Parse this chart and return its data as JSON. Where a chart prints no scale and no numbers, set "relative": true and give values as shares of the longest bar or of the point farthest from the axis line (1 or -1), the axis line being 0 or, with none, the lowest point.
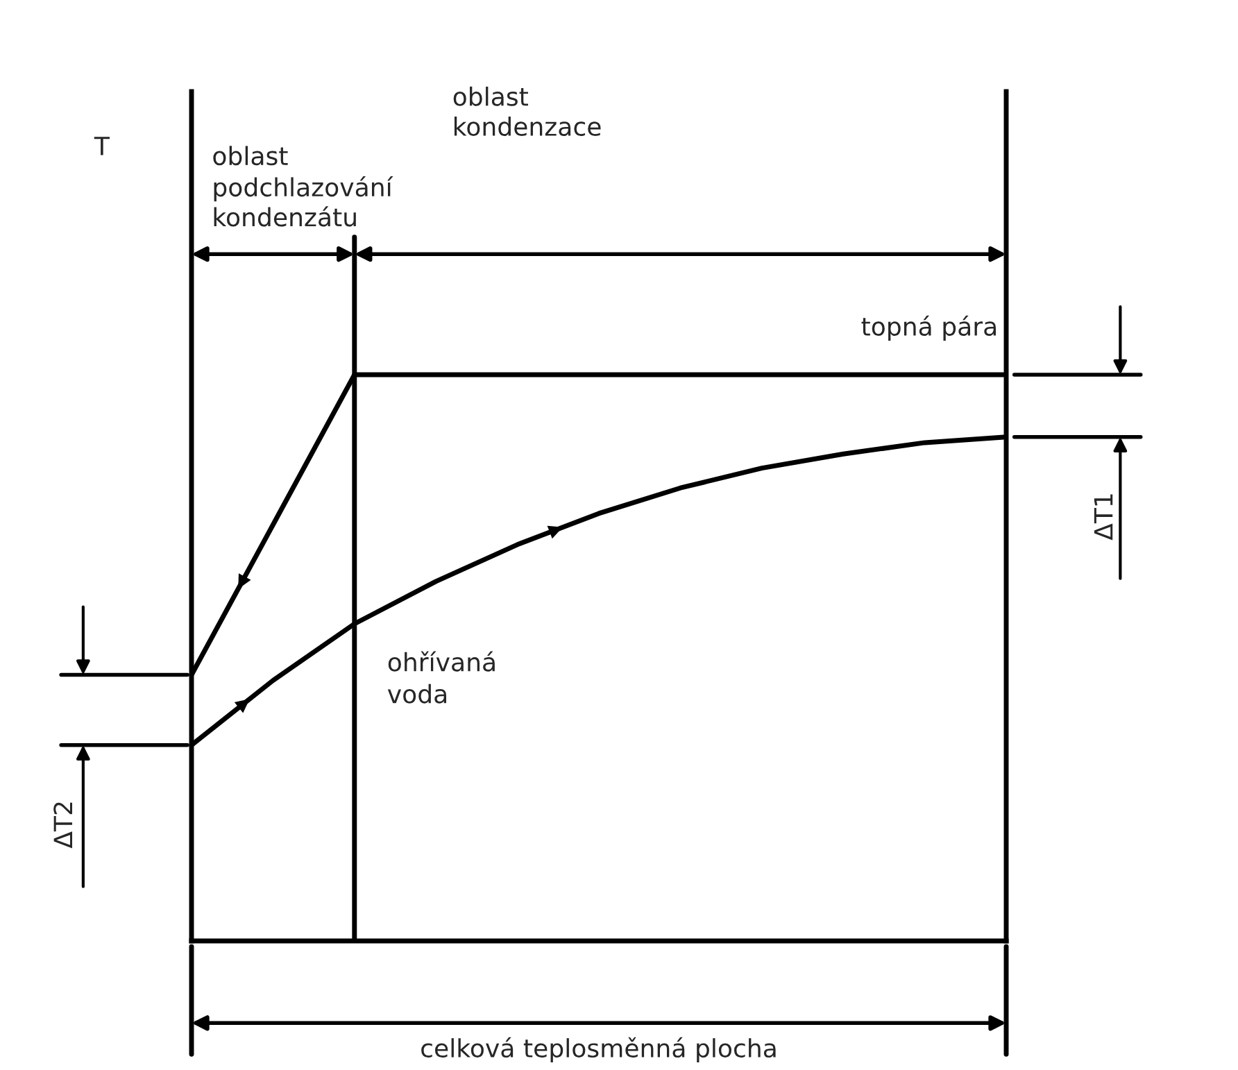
{
  "chart_data": {
    "type": "line",
    "relative": true,
    "xlabel": "celková teplosměnná plocha",
    "categories": [
      null,
      null,
      null,
      null,
      null,
      null,
      null,
      null,
      null,
      null,
      null
    ],
    "series": [
      {
        "name": "topná pára",
        "color": "#000000",
        "values": [
          0.47,
          0.735,
          1,
          1,
          1,
          1,
          1,
          1,
          1,
          1,
          1
        ]
      },
      {
        "name": "ohřívaná\nvoda",
        "color": "#000000",
        "values": [
          0.346,
          0.46,
          0.56,
          0.635,
          0.7,
          0.755,
          0.8,
          0.835,
          0.86,
          0.88,
          0.89
        ]
      }
    ],
    "annotations": [
      "oblast\npodchlazování\nkondenzátu",
      "oblast\nkondenzace",
      "ΔT1",
      "ΔT2",
      "T"
    ],
    "legend": false,
    "grid": false,
    "marker": "none",
    "line_style": "solid"
  }
}
